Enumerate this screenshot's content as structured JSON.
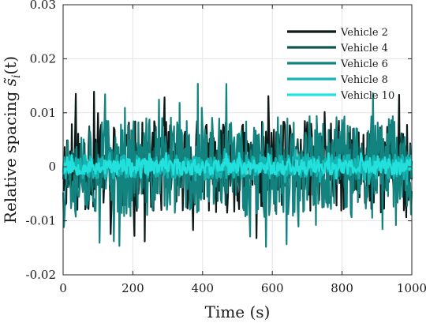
{
  "chart_data": {
    "type": "line",
    "xlabel": "Time (s)",
    "ylabel_prefix": "Relative spacing ",
    "ylabel_symbol": "s̃",
    "ylabel_subscript": "i",
    "ylabel_suffix": "(t)",
    "xlim": [
      0,
      1000
    ],
    "ylim": [
      -0.02,
      0.03
    ],
    "xticks": [
      0,
      200,
      400,
      600,
      800,
      1000
    ],
    "xtick_labels": [
      "0",
      "200",
      "400",
      "600",
      "800",
      "1000"
    ],
    "yticks": [
      -0.02,
      -0.01,
      0,
      0.01,
      0.02,
      0.03
    ],
    "ytick_labels": [
      "-0.02",
      "-0.01",
      "0",
      "0.01",
      "0.02",
      "0.03"
    ],
    "grid": true,
    "legend_position": "top-right",
    "signal": {
      "samples": 440,
      "description": "dense oscillating noise signals around zero"
    },
    "series": [
      {
        "name": "Vehicle 2",
        "color": "#0d1a18",
        "amplitude": 0.0085,
        "peak_max": 0.0145,
        "peak_min": -0.0145,
        "seed": 11
      },
      {
        "name": "Vehicle 4",
        "color": "#0f5551",
        "amplitude": 0.0045,
        "peak_max": 0.0075,
        "peak_min": -0.0075,
        "seed": 23
      },
      {
        "name": "Vehicle 6",
        "color": "#138380",
        "amplitude": 0.0095,
        "peak_max": 0.0155,
        "peak_min": -0.0175,
        "seed": 37
      },
      {
        "name": "Vehicle 8",
        "color": "#16b4b1",
        "amplitude": 0.0022,
        "peak_max": 0.004,
        "peak_min": -0.004,
        "seed": 41
      },
      {
        "name": "Vehicle 10",
        "color": "#22e1dc",
        "amplitude": 0.0015,
        "peak_max": 0.003,
        "peak_min": -0.003,
        "seed": 53
      }
    ]
  }
}
